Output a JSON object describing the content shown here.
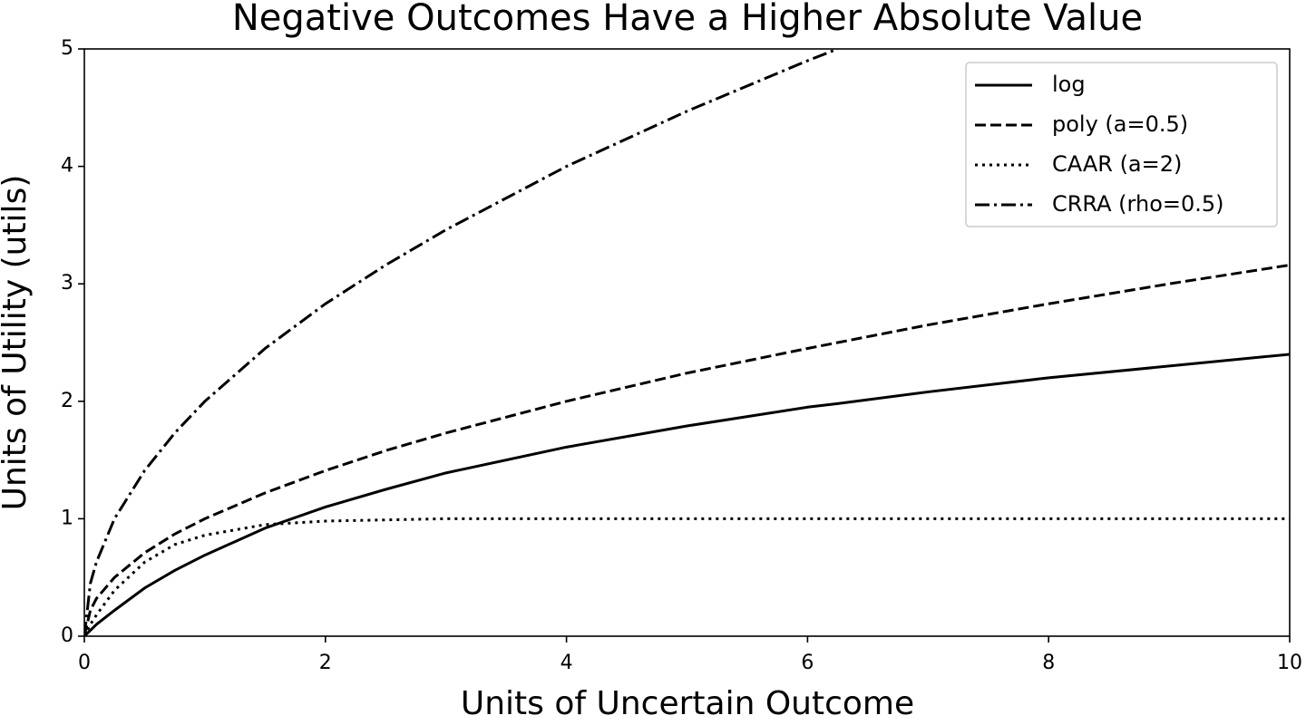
{
  "chart_data": {
    "type": "line",
    "title": "Negative Outcomes Have a Higher Absolute Value",
    "x_label": "Units of Uncertain Outcome",
    "y_label": "Units of Utility (utils)",
    "x": [
      0,
      0.05,
      0.1,
      0.25,
      0.5,
      0.75,
      1,
      1.5,
      2,
      2.5,
      3,
      4,
      5,
      6,
      6.25,
      7,
      8,
      9,
      10
    ],
    "series": [
      {
        "name": "log",
        "color": "#000000",
        "dash": "solid",
        "values": [
          0,
          0.05,
          0.1,
          0.22,
          0.41,
          0.56,
          0.69,
          0.92,
          1.1,
          1.25,
          1.39,
          1.61,
          1.79,
          1.95,
          1.98,
          2.08,
          2.2,
          2.3,
          2.4
        ]
      },
      {
        "name": "poly (a=0.5)",
        "color": "#000000",
        "dash": "dashed",
        "values": [
          0,
          0.22,
          0.32,
          0.5,
          0.71,
          0.87,
          1.0,
          1.22,
          1.41,
          1.58,
          1.73,
          2.0,
          2.24,
          2.45,
          2.5,
          2.65,
          2.83,
          3.0,
          3.16
        ]
      },
      {
        "name": "CAAR (a=2)",
        "color": "#000000",
        "dash": "dotted",
        "values": [
          0,
          0.1,
          0.18,
          0.39,
          0.63,
          0.78,
          0.86,
          0.95,
          0.98,
          0.99,
          1.0,
          1,
          1,
          1,
          1,
          1,
          1,
          1,
          1
        ]
      },
      {
        "name": "CRRA (rho=0.5)",
        "color": "#000000",
        "dash": "dashdot",
        "values": [
          0,
          0.45,
          0.63,
          1.0,
          1.41,
          1.73,
          2.0,
          2.45,
          2.83,
          3.16,
          3.46,
          4.0,
          4.47,
          4.9,
          5.0,
          null,
          null,
          null,
          null
        ]
      }
    ],
    "xlim": [
      0,
      10
    ],
    "ylim": [
      0,
      5
    ],
    "xticks": [
      0,
      2,
      4,
      6,
      8,
      10
    ],
    "yticks": [
      0,
      1,
      2,
      3,
      4,
      5
    ],
    "grid": false,
    "legend": "upper right"
  }
}
